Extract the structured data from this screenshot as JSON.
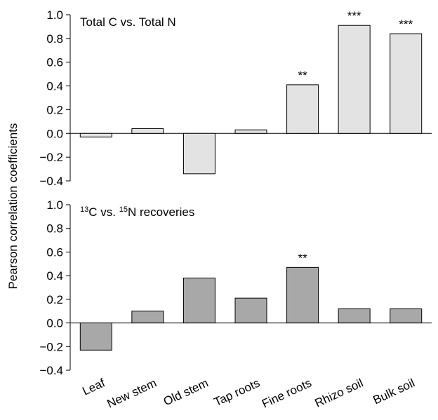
{
  "chart_data": [
    {
      "type": "bar",
      "title": "Total C vs. Total N",
      "ylabel": "Pearson correlation coefficients",
      "ylim": [
        -0.4,
        1.0
      ],
      "yticks": [
        "1.0",
        "0.8",
        "0.6",
        "0.4",
        "0.2",
        "0.0",
        "−0.2",
        "−0.4"
      ],
      "categories": [
        "Leaf",
        "New stem",
        "Old stem",
        "Tap roots",
        "Fine roots",
        "Rhizo soil",
        "Bulk soil"
      ],
      "values": [
        -0.03,
        0.04,
        -0.34,
        0.03,
        0.41,
        0.91,
        0.84
      ],
      "significance": [
        "",
        "",
        "",
        "",
        "**",
        "***",
        "***"
      ],
      "bar_color": "#e3e3e3"
    },
    {
      "type": "bar",
      "title_parts": [
        "13",
        "C vs. ",
        "15",
        "N recoveries"
      ],
      "ylabel": "Pearson correlation coefficients",
      "ylim": [
        -0.4,
        1.0
      ],
      "yticks": [
        "1.0",
        "0.8",
        "0.6",
        "0.4",
        "0.2",
        "0.0",
        "−0.2",
        "−0.4"
      ],
      "categories": [
        "Leaf",
        "New stem",
        "Old stem",
        "Tap roots",
        "Fine roots",
        "Rhizo soil",
        "Bulk soil"
      ],
      "values": [
        -0.23,
        0.1,
        0.38,
        0.21,
        0.47,
        0.12,
        0.12
      ],
      "significance": [
        "",
        "",
        "",
        "",
        "**",
        "",
        ""
      ],
      "bar_color": "#a8a8a8"
    }
  ]
}
